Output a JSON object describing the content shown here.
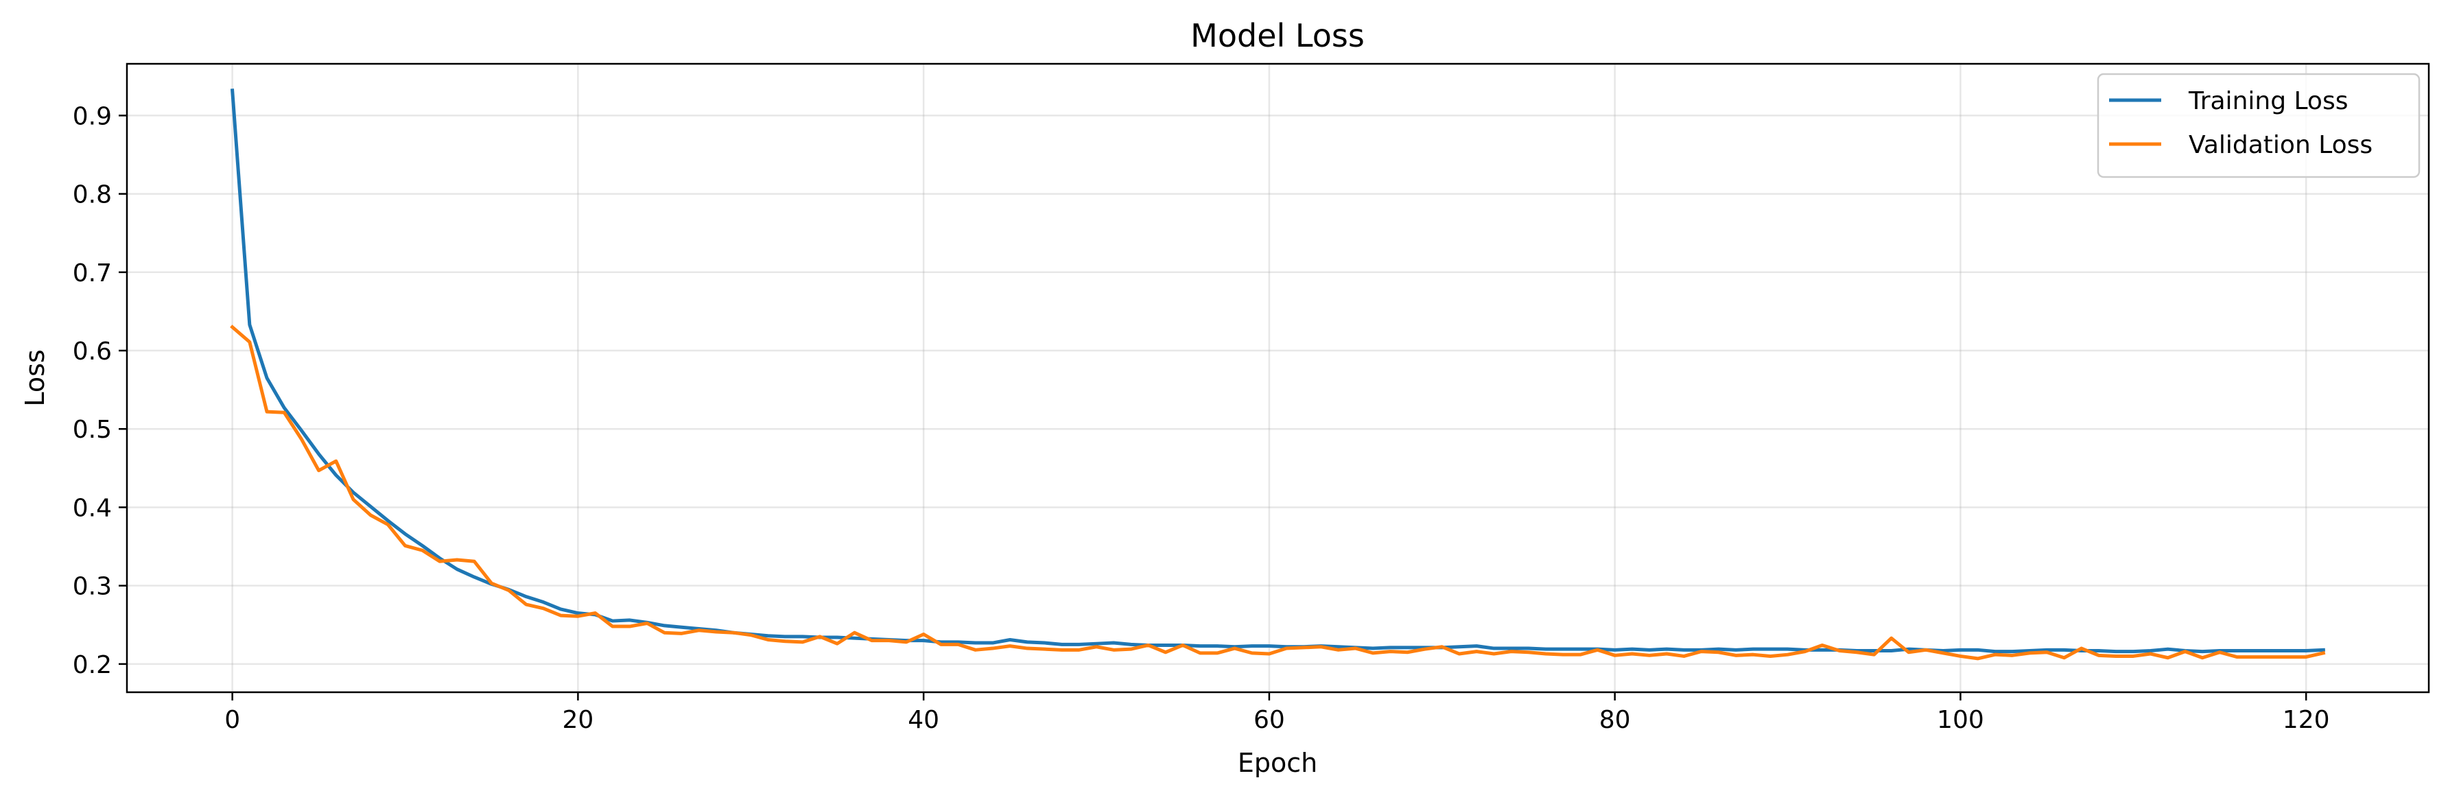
{
  "chart_data": {
    "type": "line",
    "title": "Model Loss",
    "xlabel": "Epoch",
    "ylabel": "Loss",
    "xlim": [
      -6.1,
      127.1
    ],
    "ylim": [
      0.164,
      0.966
    ],
    "xticks": [
      0,
      20,
      40,
      60,
      80,
      100,
      120
    ],
    "yticks": [
      0.2,
      0.3,
      0.4,
      0.5,
      0.6,
      0.7,
      0.8,
      0.9
    ],
    "xtick_labels": [
      "0",
      "20",
      "40",
      "60",
      "80",
      "100",
      "120"
    ],
    "ytick_labels": [
      "0.2",
      "0.3",
      "0.4",
      "0.5",
      "0.6",
      "0.7",
      "0.8",
      "0.9"
    ],
    "grid": true,
    "legend_position": "top-right",
    "series": [
      {
        "name": "Training Loss",
        "color": "#1f77b4",
        "values": [
          0.932,
          0.633,
          0.565,
          0.527,
          0.498,
          0.468,
          0.441,
          0.419,
          0.401,
          0.383,
          0.366,
          0.351,
          0.335,
          0.321,
          0.311,
          0.302,
          0.295,
          0.286,
          0.279,
          0.27,
          0.265,
          0.263,
          0.255,
          0.256,
          0.253,
          0.249,
          0.247,
          0.245,
          0.243,
          0.24,
          0.238,
          0.236,
          0.235,
          0.235,
          0.234,
          0.234,
          0.233,
          0.232,
          0.231,
          0.23,
          0.23,
          0.228,
          0.228,
          0.227,
          0.227,
          0.231,
          0.228,
          0.227,
          0.225,
          0.225,
          0.226,
          0.227,
          0.225,
          0.224,
          0.224,
          0.224,
          0.223,
          0.223,
          0.222,
          0.223,
          0.223,
          0.222,
          0.222,
          0.223,
          0.222,
          0.221,
          0.22,
          0.221,
          0.221,
          0.221,
          0.221,
          0.222,
          0.223,
          0.22,
          0.22,
          0.22,
          0.219,
          0.219,
          0.219,
          0.219,
          0.218,
          0.219,
          0.218,
          0.219,
          0.218,
          0.218,
          0.219,
          0.218,
          0.219,
          0.219,
          0.219,
          0.218,
          0.218,
          0.218,
          0.217,
          0.217,
          0.217,
          0.219,
          0.218,
          0.217,
          0.218,
          0.218,
          0.216,
          0.216,
          0.217,
          0.218,
          0.218,
          0.217,
          0.217,
          0.216,
          0.216,
          0.217,
          0.219,
          0.217,
          0.216,
          0.217,
          0.217,
          0.217,
          0.217,
          0.217,
          0.217,
          0.218
        ]
      },
      {
        "name": "Validation Loss",
        "color": "#ff7f0e",
        "values": [
          0.63,
          0.611,
          0.522,
          0.521,
          0.487,
          0.447,
          0.459,
          0.41,
          0.39,
          0.378,
          0.351,
          0.345,
          0.331,
          0.333,
          0.331,
          0.303,
          0.294,
          0.276,
          0.271,
          0.262,
          0.261,
          0.265,
          0.248,
          0.248,
          0.252,
          0.24,
          0.239,
          0.243,
          0.241,
          0.24,
          0.237,
          0.231,
          0.229,
          0.228,
          0.235,
          0.226,
          0.24,
          0.23,
          0.23,
          0.228,
          0.238,
          0.225,
          0.225,
          0.218,
          0.22,
          0.223,
          0.22,
          0.219,
          0.218,
          0.218,
          0.222,
          0.218,
          0.219,
          0.224,
          0.215,
          0.224,
          0.214,
          0.214,
          0.22,
          0.214,
          0.213,
          0.22,
          0.221,
          0.222,
          0.218,
          0.22,
          0.214,
          0.216,
          0.215,
          0.219,
          0.222,
          0.213,
          0.216,
          0.213,
          0.216,
          0.215,
          0.213,
          0.212,
          0.212,
          0.218,
          0.211,
          0.213,
          0.211,
          0.213,
          0.21,
          0.216,
          0.215,
          0.211,
          0.212,
          0.21,
          0.212,
          0.216,
          0.224,
          0.217,
          0.215,
          0.212,
          0.233,
          0.215,
          0.218,
          0.214,
          0.21,
          0.207,
          0.212,
          0.211,
          0.214,
          0.215,
          0.208,
          0.22,
          0.211,
          0.21,
          0.21,
          0.213,
          0.208,
          0.216,
          0.208,
          0.215,
          0.209,
          0.209,
          0.209,
          0.209,
          0.209,
          0.214
        ]
      }
    ]
  }
}
